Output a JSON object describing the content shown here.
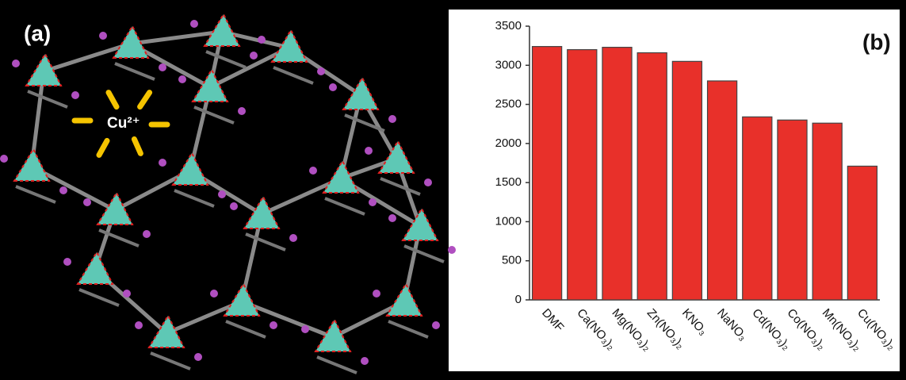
{
  "panel_a": {
    "label": "(a)",
    "annotation": "Cu²⁺"
  },
  "chart_data": {
    "type": "bar",
    "panel_label": "(b)",
    "categories": [
      "DMF",
      "Ca(NO₃)₂",
      "Mg(NO₃)₂",
      "Zn(NO₃)₂",
      "KNO₃",
      "NaNO₃",
      "Cd(NO₃)₂",
      "Co(NO₃)₂",
      "Mn(NO₃)₂",
      "Cu(NO₃)₂"
    ],
    "values": [
      3240,
      3200,
      3230,
      3160,
      3050,
      2800,
      2340,
      2300,
      2260,
      1710
    ],
    "color": "#e8302a",
    "ylim": [
      0,
      3500
    ],
    "yticks": [
      0,
      500,
      1000,
      1500,
      2000,
      2500,
      3000,
      3500
    ],
    "grid": false
  }
}
